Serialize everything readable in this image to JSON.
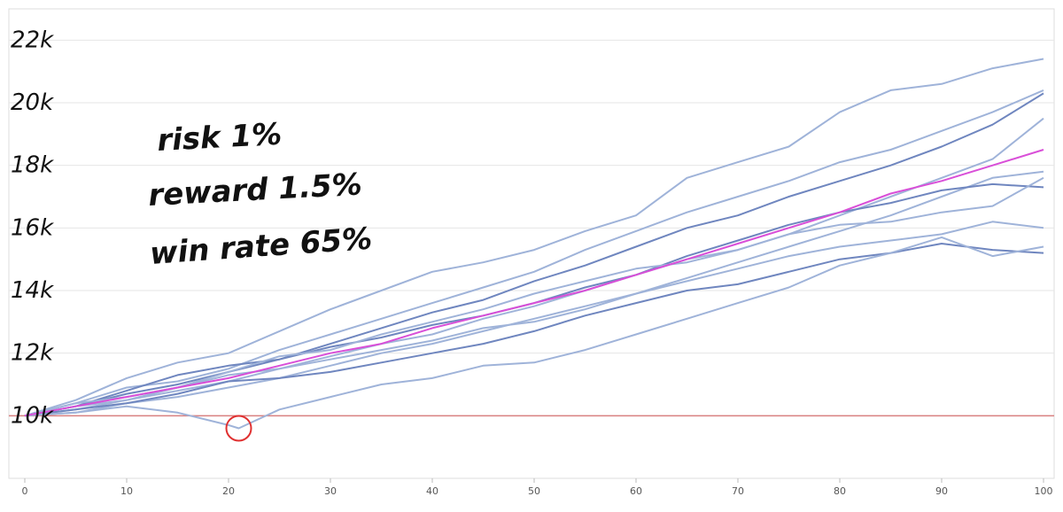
{
  "chart_data": {
    "type": "line",
    "xlim": [
      0,
      100
    ],
    "ylim": [
      8000,
      23000
    ],
    "x_ticks": [
      "0",
      "10",
      "20",
      "30",
      "40",
      "50",
      "60",
      "70",
      "80",
      "90",
      "100"
    ],
    "y_ticks": [
      {
        "value": 10000,
        "label": "10k"
      },
      {
        "value": 12000,
        "label": "12k"
      },
      {
        "value": 14000,
        "label": "14k"
      },
      {
        "value": 16000,
        "label": "16k"
      },
      {
        "value": 18000,
        "label": "18k"
      },
      {
        "value": 20000,
        "label": "20k"
      },
      {
        "value": 22000,
        "label": "22k"
      }
    ],
    "grid": true,
    "annotations": [
      "risk 1%",
      "reward 1.5%",
      "win rate 65%"
    ],
    "baseline": 10000,
    "highlight_point": {
      "x": 21,
      "y": 9600
    },
    "colors": {
      "paths": "#9fb3d9",
      "paths_dark": "#6f86bf",
      "mean": "#d94fd8",
      "baseline": "#d98080",
      "highlight": "#e03030"
    },
    "series": [
      {
        "values": [
          [
            0,
            10000
          ],
          [
            5,
            10500
          ],
          [
            10,
            11200
          ],
          [
            15,
            11700
          ],
          [
            20,
            12000
          ],
          [
            25,
            12700
          ],
          [
            30,
            13400
          ],
          [
            35,
            14000
          ],
          [
            40,
            14600
          ],
          [
            45,
            14900
          ],
          [
            50,
            15300
          ],
          [
            55,
            15900
          ],
          [
            60,
            16400
          ],
          [
            65,
            17600
          ],
          [
            70,
            18100
          ],
          [
            75,
            18600
          ],
          [
            80,
            19700
          ],
          [
            85,
            20400
          ],
          [
            90,
            20600
          ],
          [
            95,
            21100
          ],
          [
            100,
            21400
          ]
        ]
      },
      {
        "values": [
          [
            0,
            10000
          ],
          [
            5,
            10400
          ],
          [
            10,
            10900
          ],
          [
            15,
            11100
          ],
          [
            20,
            11500
          ],
          [
            25,
            12100
          ],
          [
            30,
            12600
          ],
          [
            35,
            13100
          ],
          [
            40,
            13600
          ],
          [
            45,
            14100
          ],
          [
            50,
            14600
          ],
          [
            55,
            15300
          ],
          [
            60,
            15900
          ],
          [
            65,
            16500
          ],
          [
            70,
            17000
          ],
          [
            75,
            17500
          ],
          [
            80,
            18100
          ],
          [
            85,
            18500
          ],
          [
            90,
            19100
          ],
          [
            95,
            19700
          ],
          [
            100,
            20400
          ]
        ]
      },
      {
        "values": [
          [
            0,
            10000
          ],
          [
            5,
            10300
          ],
          [
            10,
            10700
          ],
          [
            15,
            11000
          ],
          [
            20,
            11400
          ],
          [
            25,
            11800
          ],
          [
            30,
            12300
          ],
          [
            35,
            12800
          ],
          [
            40,
            13300
          ],
          [
            45,
            13700
          ],
          [
            50,
            14300
          ],
          [
            55,
            14800
          ],
          [
            60,
            15400
          ],
          [
            65,
            16000
          ],
          [
            70,
            16400
          ],
          [
            75,
            17000
          ],
          [
            80,
            17500
          ],
          [
            85,
            18000
          ],
          [
            90,
            18600
          ],
          [
            95,
            19300
          ],
          [
            100,
            20300
          ]
        ]
      },
      {
        "values": [
          [
            0,
            10000
          ],
          [
            5,
            10200
          ],
          [
            10,
            10500
          ],
          [
            15,
            10800
          ],
          [
            20,
            11100
          ],
          [
            25,
            11500
          ],
          [
            30,
            11900
          ],
          [
            35,
            12300
          ],
          [
            40,
            12600
          ],
          [
            45,
            13100
          ],
          [
            50,
            13500
          ],
          [
            55,
            14000
          ],
          [
            60,
            14500
          ],
          [
            65,
            15000
          ],
          [
            70,
            15300
          ],
          [
            75,
            15800
          ],
          [
            80,
            16400
          ],
          [
            85,
            17000
          ],
          [
            90,
            17600
          ],
          [
            95,
            18200
          ],
          [
            100,
            19500
          ]
        ]
      },
      {
        "values": [
          [
            0,
            10000
          ],
          [
            5,
            10100
          ],
          [
            10,
            10400
          ],
          [
            15,
            10600
          ],
          [
            20,
            10900
          ],
          [
            25,
            11200
          ],
          [
            30,
            11600
          ],
          [
            35,
            12000
          ],
          [
            40,
            12300
          ],
          [
            45,
            12700
          ],
          [
            50,
            13100
          ],
          [
            55,
            13500
          ],
          [
            60,
            13900
          ],
          [
            65,
            14400
          ],
          [
            70,
            14900
          ],
          [
            75,
            15400
          ],
          [
            80,
            15900
          ],
          [
            85,
            16400
          ],
          [
            90,
            17000
          ],
          [
            95,
            17600
          ],
          [
            100,
            17800
          ]
        ]
      },
      {
        "values": [
          [
            0,
            10000
          ],
          [
            5,
            10300
          ],
          [
            10,
            10800
          ],
          [
            15,
            11300
          ],
          [
            20,
            11600
          ],
          [
            25,
            11800
          ],
          [
            30,
            12200
          ],
          [
            35,
            12500
          ],
          [
            40,
            12900
          ],
          [
            45,
            13200
          ],
          [
            50,
            13600
          ],
          [
            55,
            14100
          ],
          [
            60,
            14500
          ],
          [
            65,
            15100
          ],
          [
            70,
            15600
          ],
          [
            75,
            16100
          ],
          [
            80,
            16500
          ],
          [
            85,
            16800
          ],
          [
            90,
            17200
          ],
          [
            95,
            17400
          ],
          [
            100,
            17300
          ]
        ]
      },
      {
        "values": [
          [
            0,
            10000
          ],
          [
            5,
            10400
          ],
          [
            10,
            10600
          ],
          [
            15,
            10900
          ],
          [
            20,
            11400
          ],
          [
            25,
            11900
          ],
          [
            30,
            12100
          ],
          [
            35,
            12600
          ],
          [
            40,
            13000
          ],
          [
            45,
            13400
          ],
          [
            50,
            13900
          ],
          [
            55,
            14300
          ],
          [
            60,
            14700
          ],
          [
            65,
            14900
          ],
          [
            70,
            15300
          ],
          [
            75,
            15800
          ],
          [
            80,
            16100
          ],
          [
            85,
            16200
          ],
          [
            90,
            16500
          ],
          [
            95,
            16700
          ],
          [
            100,
            17600
          ]
        ]
      },
      {
        "values": [
          [
            0,
            10000
          ],
          [
            5,
            10300
          ],
          [
            10,
            10500
          ],
          [
            15,
            10900
          ],
          [
            20,
            11300
          ],
          [
            25,
            11500
          ],
          [
            30,
            11800
          ],
          [
            35,
            12100
          ],
          [
            40,
            12400
          ],
          [
            45,
            12800
          ],
          [
            50,
            13000
          ],
          [
            55,
            13400
          ],
          [
            60,
            13900
          ],
          [
            65,
            14300
          ],
          [
            70,
            14700
          ],
          [
            75,
            15100
          ],
          [
            80,
            15400
          ],
          [
            85,
            15600
          ],
          [
            90,
            15800
          ],
          [
            95,
            16200
          ],
          [
            100,
            16000
          ]
        ]
      },
      {
        "values": [
          [
            0,
            10000
          ],
          [
            5,
            10200
          ],
          [
            10,
            10400
          ],
          [
            15,
            10700
          ],
          [
            20,
            11100
          ],
          [
            25,
            11200
          ],
          [
            30,
            11400
          ],
          [
            35,
            11700
          ],
          [
            40,
            12000
          ],
          [
            45,
            12300
          ],
          [
            50,
            12700
          ],
          [
            55,
            13200
          ],
          [
            60,
            13600
          ],
          [
            65,
            14000
          ],
          [
            70,
            14200
          ],
          [
            75,
            14600
          ],
          [
            80,
            15000
          ],
          [
            85,
            15200
          ],
          [
            90,
            15500
          ],
          [
            95,
            15300
          ],
          [
            100,
            15200
          ]
        ]
      },
      {
        "values": [
          [
            0,
            10000
          ],
          [
            5,
            10100
          ],
          [
            10,
            10300
          ],
          [
            15,
            10100
          ],
          [
            20,
            9700
          ],
          [
            21,
            9600
          ],
          [
            23,
            9900
          ],
          [
            25,
            10200
          ],
          [
            30,
            10600
          ],
          [
            35,
            11000
          ],
          [
            40,
            11200
          ],
          [
            45,
            11600
          ],
          [
            50,
            11700
          ],
          [
            55,
            12100
          ],
          [
            60,
            12600
          ],
          [
            65,
            13100
          ],
          [
            70,
            13600
          ],
          [
            75,
            14100
          ],
          [
            80,
            14800
          ],
          [
            85,
            15200
          ],
          [
            90,
            15700
          ],
          [
            95,
            15100
          ],
          [
            100,
            15400
          ]
        ]
      }
    ],
    "mean": {
      "values": [
        [
          0,
          10000
        ],
        [
          5,
          10300
        ],
        [
          10,
          10600
        ],
        [
          15,
          10900
        ],
        [
          20,
          11200
        ],
        [
          25,
          11600
        ],
        [
          30,
          12000
        ],
        [
          35,
          12300
        ],
        [
          40,
          12800
        ],
        [
          45,
          13200
        ],
        [
          50,
          13600
        ],
        [
          55,
          14000
        ],
        [
          60,
          14500
        ],
        [
          65,
          15000
        ],
        [
          70,
          15500
        ],
        [
          75,
          16000
        ],
        [
          80,
          16500
        ],
        [
          85,
          17100
        ],
        [
          90,
          17500
        ],
        [
          95,
          18000
        ],
        [
          100,
          18500
        ]
      ]
    }
  }
}
